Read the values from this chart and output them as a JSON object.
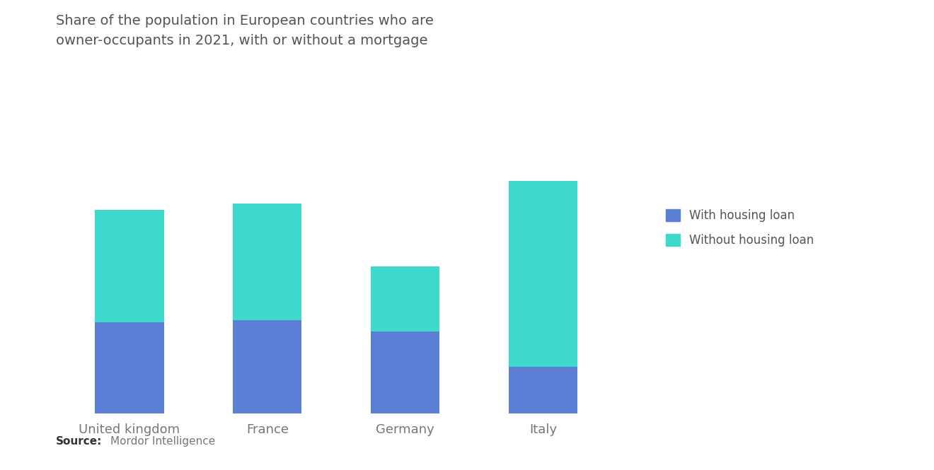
{
  "categories": [
    "United kingdom",
    "France",
    "Germany",
    "Italy"
  ],
  "with_loan": [
    28.2,
    29.0,
    25.5,
    14.5
  ],
  "without_loan": [
    34.8,
    36.0,
    20.0,
    57.5
  ],
  "color_with_loan": "#5B7FD4",
  "color_without_loan": "#3DD9CC",
  "title_line1": "Share of the population in European countries who are",
  "title_line2": "owner-occupants in 2021, with or without a mortgage",
  "legend_with": "With housing loan",
  "legend_without": "Without housing loan",
  "source_bold": "Source:",
  "source_text": "Mordor Intelligence",
  "background_color": "#FFFFFF",
  "bar_width": 0.5,
  "ylim": [
    0,
    80
  ]
}
